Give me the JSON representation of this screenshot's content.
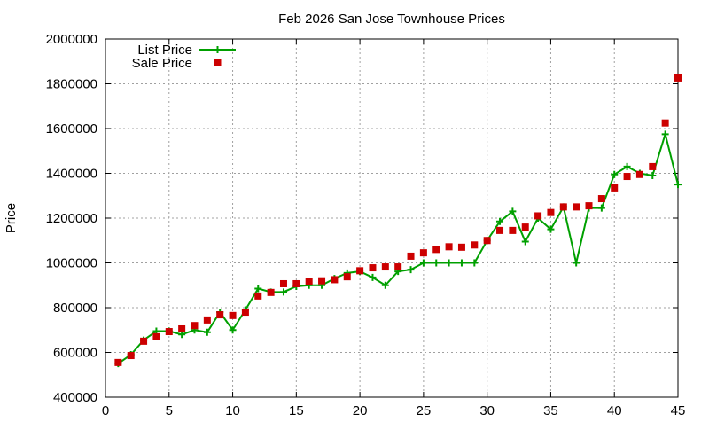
{
  "chart_data": {
    "type": "line",
    "title": "Feb 2026 San Jose Townhouse Prices",
    "xlabel": "",
    "ylabel": "Price",
    "xlim": [
      0,
      45
    ],
    "ylim": [
      400000,
      2000000
    ],
    "xticks": [
      0,
      5,
      10,
      15,
      20,
      25,
      30,
      35,
      40,
      45
    ],
    "yticks": [
      400000,
      600000,
      800000,
      1000000,
      1200000,
      1400000,
      1600000,
      1800000,
      2000000
    ],
    "grid": true,
    "legend_position": "top-left",
    "x": [
      1,
      2,
      3,
      4,
      5,
      6,
      7,
      8,
      9,
      10,
      11,
      12,
      13,
      14,
      15,
      16,
      17,
      18,
      19,
      20,
      21,
      22,
      23,
      24,
      25,
      26,
      27,
      28,
      29,
      30,
      31,
      32,
      33,
      34,
      35,
      36,
      37,
      38,
      39,
      40,
      41,
      42,
      43,
      44,
      45
    ],
    "series": [
      {
        "name": "List Price",
        "style": "linespoints",
        "color": "#00a000",
        "values": [
          550000,
          590000,
          655000,
          695000,
          695000,
          680000,
          700000,
          690000,
          780000,
          700000,
          790000,
          885000,
          870000,
          870000,
          895000,
          900000,
          900000,
          930000,
          955000,
          962000,
          935000,
          900000,
          962000,
          970000,
          1000000,
          1000000,
          1000000,
          1000000,
          1000000,
          1100000,
          1185000,
          1230000,
          1095000,
          1200000,
          1150000,
          1250000,
          1000000,
          1245000,
          1245000,
          1395000,
          1430000,
          1400000,
          1390000,
          1575000,
          1350000
        ]
      },
      {
        "name": "Sale Price",
        "style": "points",
        "color": "#cc0000",
        "values": [
          555000,
          586000,
          650000,
          670000,
          693000,
          705000,
          720000,
          745000,
          768000,
          765000,
          780000,
          852000,
          868000,
          907000,
          907000,
          915000,
          920000,
          925000,
          938000,
          965000,
          978000,
          982000,
          982000,
          1030000,
          1045000,
          1060000,
          1072000,
          1070000,
          1080000,
          1100000,
          1145000,
          1145000,
          1160000,
          1210000,
          1225000,
          1250000,
          1250000,
          1255000,
          1287000,
          1335000,
          1386000,
          1395000,
          1430000,
          1625000,
          1826000
        ]
      }
    ]
  }
}
